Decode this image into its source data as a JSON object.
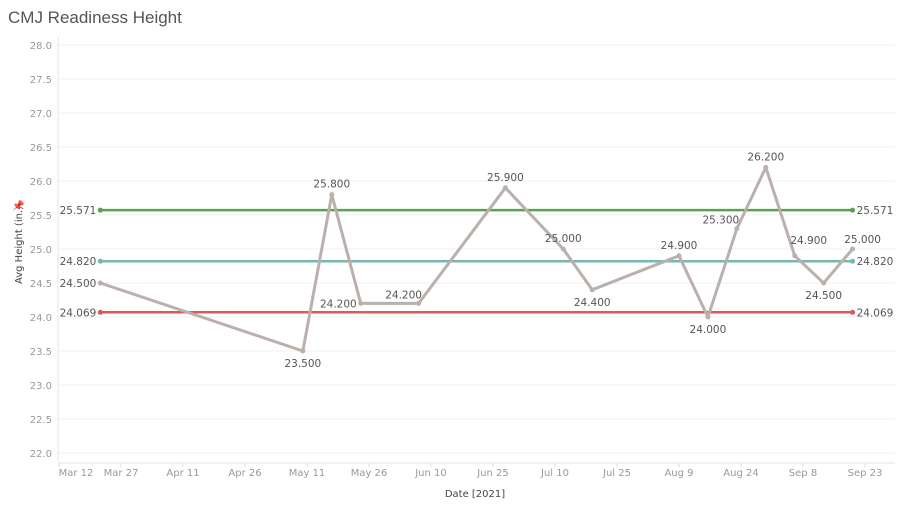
{
  "title": "CMJ Readiness Height",
  "chart_data": {
    "type": "line",
    "title": "CMJ Readiness Height",
    "xlabel": "Date [2021]",
    "ylabel": "Avg Height (in.)",
    "ylim": [
      22.0,
      28.0
    ],
    "yticks": [
      "22.0",
      "22.5",
      "23.0",
      "23.5",
      "24.0",
      "24.5",
      "25.0",
      "25.5",
      "26.0",
      "26.5",
      "27.0",
      "27.5",
      "28.0"
    ],
    "xticks": [
      "Mar 12",
      "Mar 27",
      "Apr 11",
      "Apr 26",
      "May 11",
      "May 26",
      "Jun 10",
      "Jun 25",
      "Jul 10",
      "Jul 25",
      "Aug 9",
      "Aug 24",
      "Sep 8",
      "Sep 23"
    ],
    "grid": true,
    "series": [
      {
        "color": "#bab0ac",
        "points": [
          {
            "x": "2021-03-22",
            "y": 24.5,
            "label": "24.500"
          },
          {
            "x": "2021-05-10",
            "y": 23.5,
            "label": "23.500"
          },
          {
            "x": "2021-05-17",
            "y": 25.8,
            "label": "25.800"
          },
          {
            "x": "2021-05-24",
            "y": 24.2,
            "label": "24.200"
          },
          {
            "x": "2021-06-07",
            "y": 24.2,
            "label": "24.200"
          },
          {
            "x": "2021-06-28",
            "y": 25.9,
            "label": "25.900"
          },
          {
            "x": "2021-07-12",
            "y": 25.0,
            "label": "25.000"
          },
          {
            "x": "2021-07-19",
            "y": 24.4,
            "label": "24.400"
          },
          {
            "x": "2021-08-09",
            "y": 24.9,
            "label": "24.900"
          },
          {
            "x": "2021-08-16",
            "y": 24.0,
            "label": "24.000"
          },
          {
            "x": "2021-08-23",
            "y": 25.3,
            "label": "25.300"
          },
          {
            "x": "2021-08-30",
            "y": 26.2,
            "label": "26.200"
          },
          {
            "x": "2021-09-06",
            "y": 24.9,
            "label": "24.900"
          },
          {
            "x": "2021-09-13",
            "y": 24.5,
            "label": "24.500"
          },
          {
            "x": "2021-09-20",
            "y": 25.0,
            "label": "25.000"
          }
        ]
      }
    ],
    "reference_lines": [
      {
        "y": 25.571,
        "label": "25.571",
        "color": "#59a14f"
      },
      {
        "y": 24.82,
        "label": "24.820",
        "color": "#76b7b2"
      },
      {
        "y": 24.069,
        "label": "24.069",
        "color": "#e15759"
      }
    ]
  }
}
